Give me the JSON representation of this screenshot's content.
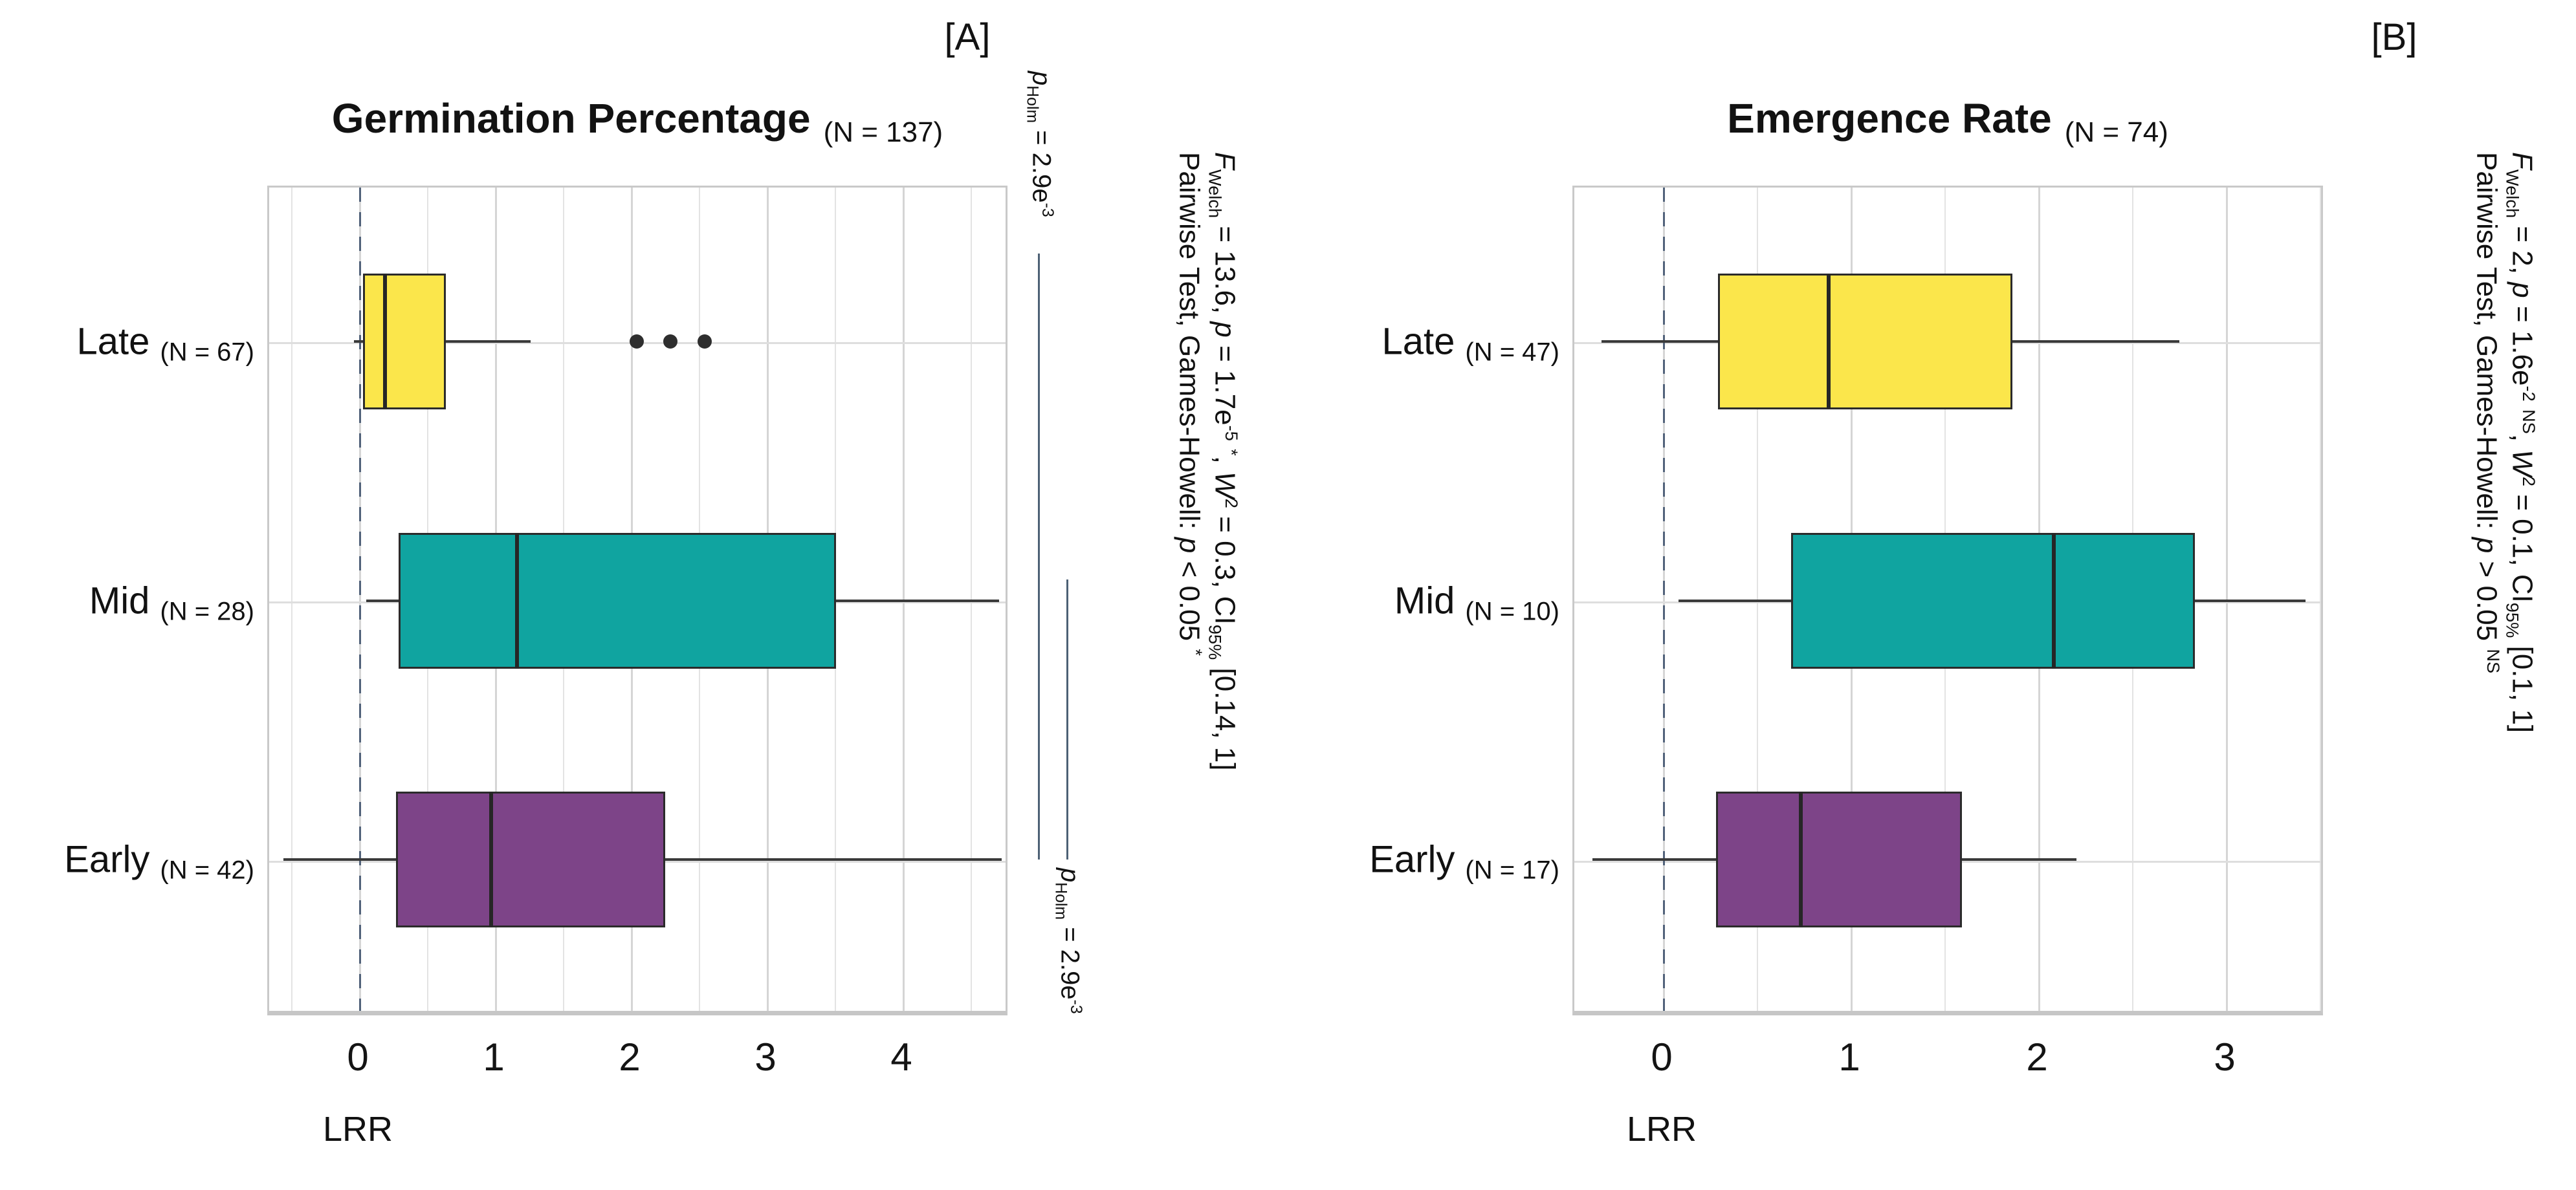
{
  "figure": {
    "corner_labels": [
      "[A]",
      "[B]"
    ],
    "colors": {
      "late": "#FBE64B",
      "mid": "#10A4A0",
      "early": "#7D4488",
      "zero_line": "#51627A",
      "bracket": "#4D6175",
      "box_border": "#2b2b2b",
      "whisker": "#3a3a3a"
    }
  },
  "chart_data": {
    "type": "boxplot",
    "orientation": "horizontal",
    "grid": "on",
    "panels": [
      {
        "corner_label": "[A]",
        "title": "Germination Percentage",
        "title_n": "(N = 137)",
        "subtitle_stats": "*{F}_{Welch} = 13.6, *{p} = 1.7e^{-5} ^{*}, *{W}^{2} = 0.3, CI_{95%} [0.14, 1]",
        "caption_stats": "Pairwise Test, Games-Howell: *{p} < 0.05 ^{*}",
        "xlabel": "LRR",
        "xlim": [
          -0.67,
          4.78
        ],
        "xticks": [
          0,
          1,
          2,
          3,
          4
        ],
        "zero_reference": 0,
        "categories": [
          "Late",
          "Mid",
          "Early"
        ],
        "rows": [
          {
            "group": "Late",
            "n_label": "(N = 67)",
            "color_key": "late",
            "whislo": -0.03,
            "q1": 0.04,
            "median": 0.2,
            "q3": 0.65,
            "whishi": 1.27,
            "outliers": [
              2.05,
              2.3,
              2.55
            ]
          },
          {
            "group": "Mid",
            "n_label": "(N = 28)",
            "color_key": "mid",
            "whislo": 0.06,
            "q1": 0.3,
            "median": 1.17,
            "q3": 3.52,
            "whishi": 4.72,
            "outliers": []
          },
          {
            "group": "Early",
            "n_label": "(N = 42)",
            "color_key": "early",
            "whislo": -0.55,
            "q1": 0.28,
            "median": 0.98,
            "q3": 2.26,
            "whishi": 4.74,
            "outliers": []
          }
        ],
        "comparisons": [
          {
            "label": "*{p}_{Holm} = 2.9e^{-3}",
            "groups": [
              "Late",
              "Early"
            ]
          },
          {
            "label": "*{p}_{Holm} = 2.9e^{-3}",
            "groups": [
              "Mid",
              "Early"
            ]
          }
        ]
      },
      {
        "corner_label": "[B]",
        "title": "Emergence Rate",
        "title_n": "(N = 74)",
        "subtitle_stats": "*{F}_{Welch} = 2, *{p} = 1.6e^{-2} ^{NS}, *{W}^{2} = 0.1, CI_{95%} [0.1, 1]",
        "caption_stats": "Pairwise Test, Games-Howell: *{p} > 0.05 ^{NS}",
        "xlabel": "LRR",
        "xlim": [
          -0.48,
          3.52
        ],
        "xticks": [
          0,
          1,
          2,
          3
        ],
        "zero_reference": 0,
        "categories": [
          "Late",
          "Mid",
          "Early"
        ],
        "rows": [
          {
            "group": "Late",
            "n_label": "(N = 47)",
            "color_key": "late",
            "whislo": -0.32,
            "q1": 0.3,
            "median": 0.89,
            "q3": 1.87,
            "whishi": 2.76,
            "outliers": []
          },
          {
            "group": "Mid",
            "n_label": "(N = 10)",
            "color_key": "mid",
            "whislo": 0.09,
            "q1": 0.69,
            "median": 2.09,
            "q3": 2.84,
            "whishi": 3.43,
            "outliers": []
          },
          {
            "group": "Early",
            "n_label": "(N = 17)",
            "color_key": "early",
            "whislo": -0.37,
            "q1": 0.29,
            "median": 0.74,
            "q3": 1.6,
            "whishi": 2.21,
            "outliers": []
          }
        ],
        "comparisons": []
      }
    ]
  }
}
